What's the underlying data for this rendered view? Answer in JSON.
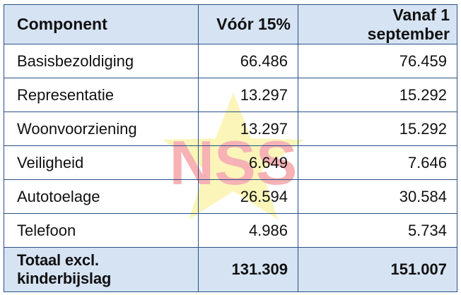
{
  "table": {
    "headers": [
      "Component",
      "Vóór 15%",
      "Vanaf 1 september"
    ],
    "rows": [
      {
        "component": "Basisbezoldiging",
        "before": "66.486",
        "after": "76.459"
      },
      {
        "component": "Representatie",
        "before": "13.297",
        "after": "15.292"
      },
      {
        "component": "Woonvoorziening",
        "before": "13.297",
        "after": "15.292"
      },
      {
        "component": "Veiligheid",
        "before": "6.649",
        "after": "7.646"
      },
      {
        "component": "Autotoelage",
        "before": "26.594",
        "after": "30.584"
      },
      {
        "component": "Telefoon",
        "before": "4.986",
        "after": "5.734"
      }
    ],
    "total": {
      "label": "Totaal excl. kinderbijslag",
      "before": "131.309",
      "after": "151.007"
    }
  },
  "watermark": {
    "text": "NSS",
    "colors": [
      "#e6262d",
      "#f4e43a",
      "#3aa33a"
    ]
  },
  "colors": {
    "header_bg": "#d6e3f3",
    "border": "#2a4f86"
  }
}
